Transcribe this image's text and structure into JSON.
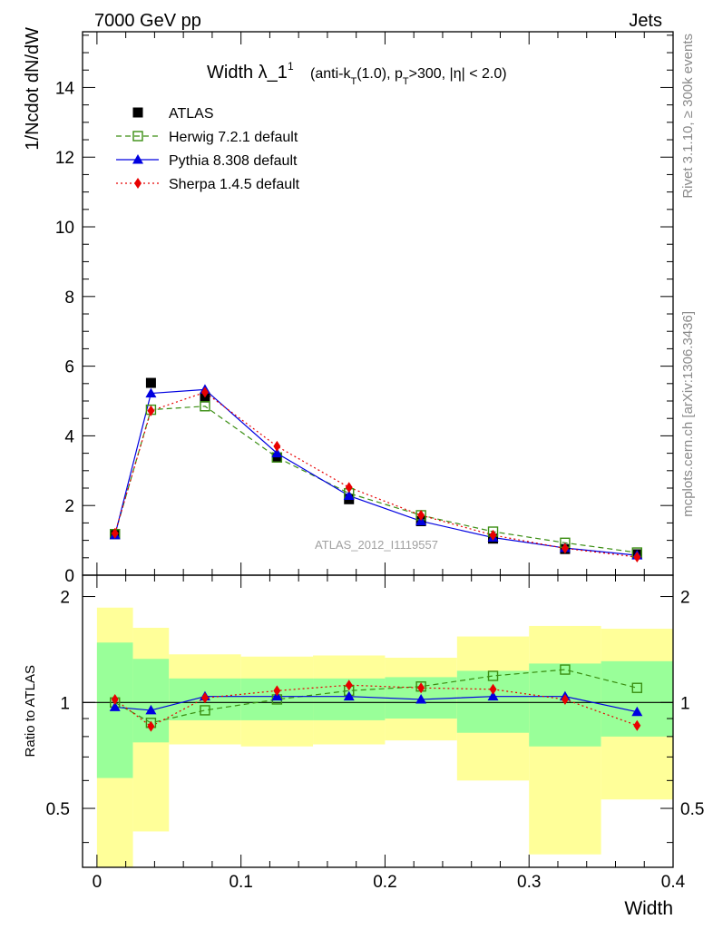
{
  "header": {
    "left": "7000 GeV pp",
    "right": "Jets"
  },
  "side_labels": {
    "rivet": "Rivet 3.1.10, ≥ 300k events",
    "mcplots": "mcplots.cern.ch [arXiv:1306.3436]"
  },
  "chart_data": [
    {
      "type": "line",
      "title": "Width λ_1",
      "title_sup": "1",
      "subtitle_parts": [
        "(anti-k",
        "T",
        "(1.0), p",
        "T",
        ">300, |η| < 2.0)"
      ],
      "ylabel": "1/Ncdot dN/dW",
      "xlabel": "Width",
      "watermark": "ATLAS_2012_I1119557",
      "xlim": [
        -0.01,
        0.4
      ],
      "ylim": [
        0,
        15.6
      ],
      "yticks": [
        0,
        2,
        4,
        6,
        8,
        10,
        12,
        14
      ],
      "ytick_labels": [
        "0",
        "2",
        "4",
        "6",
        "8",
        "10",
        "12",
        "14"
      ],
      "x": [
        0.0125,
        0.0375,
        0.075,
        0.125,
        0.175,
        0.225,
        0.275,
        0.325,
        0.375
      ],
      "series": [
        {
          "name": "ATLAS",
          "color": "#000000",
          "marker": "square",
          "line": "none",
          "values": [
            1.18,
            5.52,
            5.1,
            3.38,
            2.18,
            1.55,
            1.05,
            0.75,
            0.6
          ]
        },
        {
          "name": "Herwig 7.2.1 default",
          "color": "#3a8e12",
          "marker": "open-square",
          "line": "dashed",
          "values": [
            1.18,
            4.75,
            4.85,
            3.38,
            2.35,
            1.72,
            1.25,
            0.93,
            0.65
          ]
        },
        {
          "name": "Pythia 8.308 default",
          "color": "#0000e0",
          "marker": "triangle",
          "line": "solid",
          "values": [
            1.15,
            5.22,
            5.33,
            3.5,
            2.28,
            1.55,
            1.08,
            0.78,
            0.57
          ]
        },
        {
          "name": "Sherpa 1.4.5 default",
          "color": "#e80000",
          "marker": "diamond",
          "line": "dotted",
          "values": [
            1.2,
            4.72,
            5.25,
            3.7,
            2.52,
            1.72,
            1.15,
            0.77,
            0.52
          ]
        }
      ]
    },
    {
      "type": "line",
      "ylabel": "Ratio to ATLAS",
      "xlabel": "Width",
      "xlim": [
        -0.01,
        0.4
      ],
      "ylim": [
        0.34,
        2.3
      ],
      "yticks": [
        0.5,
        1,
        2
      ],
      "ytick_labels": [
        "0.5",
        "1",
        "2"
      ],
      "xticks": [
        0,
        0.1,
        0.2,
        0.3,
        0.4
      ],
      "xtick_labels": [
        "0",
        "0.1",
        "0.2",
        "0.3",
        "0.4"
      ],
      "bin_edges": [
        0,
        0.025,
        0.05,
        0.1,
        0.15,
        0.2,
        0.25,
        0.3,
        0.35,
        0.4
      ],
      "band_inner": {
        "color": "#99ff99",
        "low": [
          0.61,
          0.77,
          0.89,
          0.89,
          0.89,
          0.9,
          0.82,
          0.75,
          0.8
        ],
        "high": [
          1.48,
          1.33,
          1.17,
          1.17,
          1.17,
          1.18,
          1.23,
          1.29,
          1.31
        ]
      },
      "band_outer": {
        "color": "#ffff99",
        "low": [
          0.34,
          0.43,
          0.76,
          0.75,
          0.76,
          0.78,
          0.6,
          0.37,
          0.53
        ],
        "high": [
          1.86,
          1.63,
          1.37,
          1.35,
          1.36,
          1.34,
          1.54,
          1.65,
          1.62
        ]
      },
      "x": [
        0.0125,
        0.0375,
        0.075,
        0.125,
        0.175,
        0.225,
        0.275,
        0.325,
        0.375
      ],
      "series": [
        {
          "name": "Herwig 7.2.1 default",
          "color": "#3a8e12",
          "marker": "open-square",
          "line": "dashed",
          "values": [
            1.0,
            0.875,
            0.95,
            1.02,
            1.08,
            1.11,
            1.19,
            1.24,
            1.1
          ]
        },
        {
          "name": "Pythia 8.308 default",
          "color": "#0000e0",
          "marker": "triangle",
          "line": "solid",
          "values": [
            0.97,
            0.95,
            1.04,
            1.04,
            1.04,
            1.02,
            1.04,
            1.04,
            0.94
          ]
        },
        {
          "name": "Sherpa 1.4.5 default",
          "color": "#e80000",
          "marker": "diamond",
          "line": "dotted",
          "values": [
            1.02,
            0.855,
            1.03,
            1.08,
            1.12,
            1.1,
            1.09,
            1.02,
            0.86
          ]
        }
      ]
    }
  ]
}
